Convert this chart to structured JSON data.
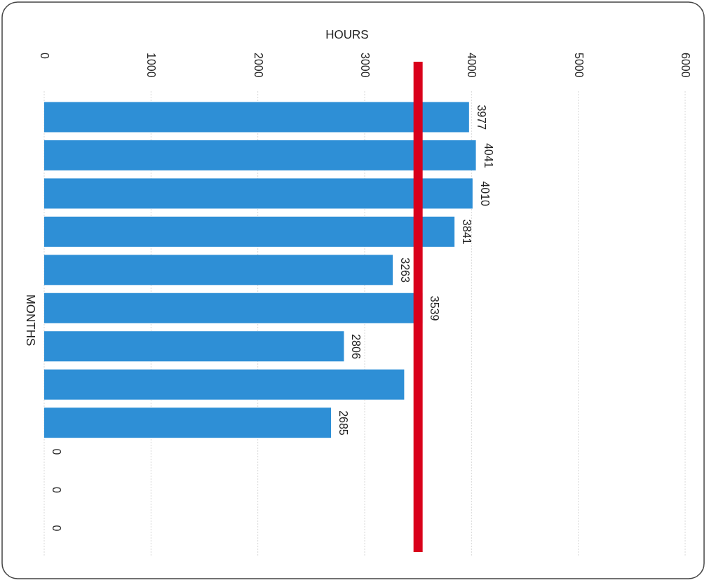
{
  "chart_data": {
    "type": "bar",
    "orientation": "horizontal",
    "xlabel": "HOURS",
    "ylabel": "MONTHS",
    "categories": [
      null,
      null,
      null,
      null,
      null,
      null,
      null,
      null,
      null,
      null,
      null,
      null
    ],
    "values": [
      3977,
      4041,
      4010,
      3841,
      3263,
      3539,
      2806,
      3370,
      2685,
      0,
      0,
      0
    ],
    "value_labels": [
      "3977",
      "4041",
      "4010",
      "3841",
      "3263",
      "3539",
      "2806",
      null,
      "2685",
      "0",
      "0",
      "0"
    ],
    "color": "#2e8fd6",
    "xlim": [
      0,
      6000
    ],
    "xticks": [
      0,
      1000,
      2000,
      3000,
      4000,
      5000,
      6000
    ],
    "grid": "x",
    "ref_lines": [
      {
        "axis": "x",
        "value": 3500,
        "color": "#d9001b"
      }
    ]
  }
}
